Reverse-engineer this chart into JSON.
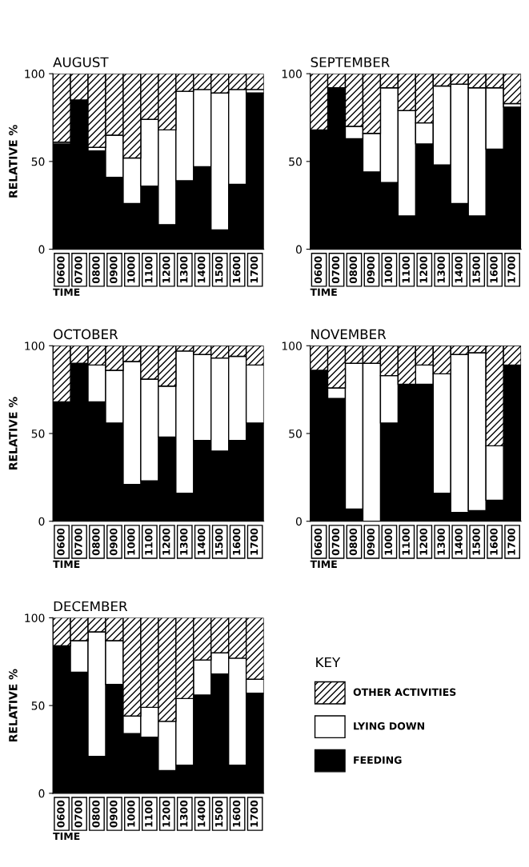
{
  "chart_data": [
    {
      "type": "bar",
      "title": "AUGUST",
      "xlabel": "TIME",
      "ylabel": "RELATIVE %",
      "stacked": true,
      "ylim": [
        0,
        100
      ],
      "yticks": [
        0,
        50,
        100
      ],
      "grid": false,
      "categories": [
        "0600",
        "0700",
        "0800",
        "0900",
        "1000",
        "1100",
        "1200",
        "1300",
        "1400",
        "1500",
        "1600",
        "1700"
      ],
      "series": [
        {
          "color": "#000000",
          "values": [
            60,
            85,
            56,
            41,
            26,
            36,
            14,
            39,
            47,
            11,
            37,
            89
          ]
        },
        {
          "color": "#ffffff",
          "values": [
            1,
            0,
            2,
            24,
            26,
            38,
            54,
            51,
            44,
            78,
            54,
            2
          ]
        },
        {
          "color": "#000000",
          "values": [
            39,
            15,
            42,
            35,
            48,
            26,
            32,
            10,
            9,
            11,
            9,
            9
          ]
        }
      ]
    },
    {
      "type": "bar",
      "title": "SEPTEMBER",
      "xlabel": "TIME",
      "stacked": true,
      "ylim": [
        0,
        100
      ],
      "yticks": [
        0,
        50,
        100
      ],
      "grid": false,
      "categories": [
        "0600",
        "0700",
        "0800",
        "0900",
        "1000",
        "1100",
        "1200",
        "1300",
        "1400",
        "1500",
        "1600",
        "1700"
      ],
      "series": [
        {
          "color": "#000000",
          "values": [
            68,
            92,
            63,
            44,
            38,
            19,
            60,
            48,
            26,
            19,
            57,
            81
          ]
        },
        {
          "color": "#ffffff",
          "values": [
            0,
            0,
            7,
            22,
            54,
            60,
            12,
            45,
            68,
            73,
            35,
            2
          ]
        },
        {
          "color": "#000000",
          "values": [
            32,
            8,
            30,
            34,
            8,
            21,
            28,
            7,
            6,
            8,
            8,
            17
          ]
        }
      ]
    },
    {
      "type": "bar",
      "title": "OCTOBER",
      "xlabel": "TIME",
      "ylabel": "RELATIVE %",
      "stacked": true,
      "ylim": [
        0,
        100
      ],
      "yticks": [
        0,
        50,
        100
      ],
      "grid": false,
      "categories": [
        "0600",
        "0700",
        "0800",
        "0900",
        "1000",
        "1100",
        "1200",
        "1300",
        "1400",
        "1500",
        "1600",
        "1700"
      ],
      "series": [
        {
          "color": "#000000",
          "values": [
            68,
            90,
            68,
            56,
            21,
            23,
            48,
            16,
            46,
            40,
            46,
            56
          ]
        },
        {
          "color": "#ffffff",
          "values": [
            0,
            0,
            21,
            30,
            70,
            58,
            29,
            81,
            49,
            53,
            48,
            33
          ]
        },
        {
          "color": "#000000",
          "values": [
            32,
            10,
            11,
            14,
            9,
            19,
            23,
            3,
            5,
            7,
            6,
            11
          ]
        }
      ]
    },
    {
      "type": "bar",
      "title": "NOVEMBER",
      "xlabel": "TIME",
      "stacked": true,
      "ylim": [
        0,
        100
      ],
      "yticks": [
        0,
        50,
        100
      ],
      "grid": false,
      "categories": [
        "0600",
        "0700",
        "0800",
        "0900",
        "1000",
        "1100",
        "1200",
        "1300",
        "1400",
        "1500",
        "1600",
        "1700"
      ],
      "series": [
        {
          "color": "#000000",
          "values": [
            86,
            70,
            7,
            0,
            56,
            78,
            78,
            16,
            5,
            6,
            12,
            89
          ]
        },
        {
          "color": "#ffffff",
          "values": [
            0,
            6,
            83,
            90,
            27,
            0,
            11,
            68,
            90,
            90,
            31,
            0
          ]
        },
        {
          "color": "#000000",
          "values": [
            14,
            24,
            10,
            10,
            17,
            22,
            11,
            16,
            5,
            4,
            57,
            11
          ]
        }
      ]
    },
    {
      "type": "bar",
      "title": "DECEMBER",
      "xlabel": "TIME",
      "ylabel": "RELATIVE %",
      "stacked": true,
      "ylim": [
        0,
        100
      ],
      "yticks": [
        0,
        50,
        100
      ],
      "grid": false,
      "legend": "right",
      "legend_title": "KEY",
      "categories": [
        "0600",
        "0700",
        "0800",
        "0900",
        "1000",
        "1100",
        "1200",
        "1300",
        "1400",
        "1500",
        "1600",
        "1700"
      ],
      "series": [
        {
          "name": "FEEDING",
          "color": "#000000",
          "values": [
            84,
            69,
            21,
            62,
            34,
            32,
            13,
            16,
            56,
            68,
            16,
            57
          ]
        },
        {
          "name": "LYING DOWN",
          "color": "#ffffff",
          "values": [
            0,
            18,
            71,
            25,
            10,
            17,
            28,
            38,
            20,
            12,
            61,
            8
          ]
        },
        {
          "name": "OTHER ACTIVITIES",
          "color": "#000000",
          "values": [
            16,
            13,
            8,
            13,
            56,
            51,
            59,
            46,
            24,
            20,
            23,
            35
          ]
        }
      ]
    }
  ]
}
